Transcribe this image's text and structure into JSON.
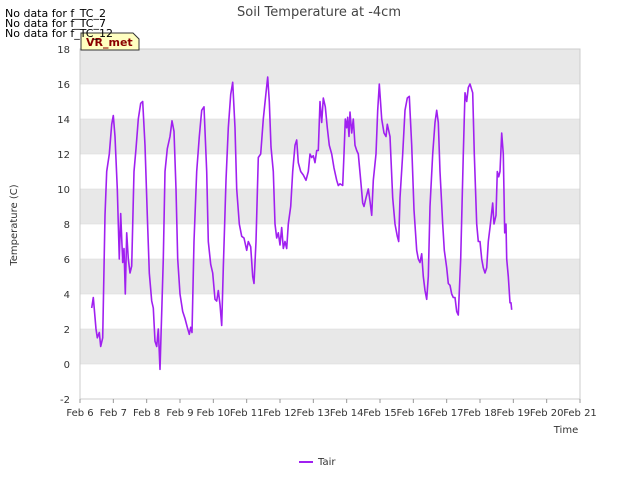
{
  "chart_data": {
    "type": "line",
    "title": "Soil Temperature at -4cm",
    "xlabel": "Time",
    "ylabel": "Temperature (C)",
    "ylim": [
      -2,
      18
    ],
    "yticks": [
      -2,
      0,
      2,
      4,
      6,
      8,
      10,
      12,
      14,
      16,
      18
    ],
    "xlim": [
      6,
      21
    ],
    "xticks": [
      {
        "v": 6,
        "label": "Feb 6"
      },
      {
        "v": 7,
        "label": "Feb 7"
      },
      {
        "v": 8,
        "label": "Feb 8"
      },
      {
        "v": 9,
        "label": "Feb 9"
      },
      {
        "v": 10,
        "label": "Feb 10"
      },
      {
        "v": 11,
        "label": "Feb 11"
      },
      {
        "v": 12,
        "label": "Feb 12"
      },
      {
        "v": 13,
        "label": "Feb 13"
      },
      {
        "v": 14,
        "label": "Feb 14"
      },
      {
        "v": 15,
        "label": "Feb 15"
      },
      {
        "v": 16,
        "label": "Feb 16"
      },
      {
        "v": 17,
        "label": "Feb 17"
      },
      {
        "v": 18,
        "label": "Feb 18"
      },
      {
        "v": 19,
        "label": "Feb 19"
      },
      {
        "v": 20,
        "label": "Feb 20"
      },
      {
        "v": 21,
        "label": "Feb 21"
      }
    ],
    "series": [
      {
        "name": "Tair",
        "color": "#a020f0",
        "points": [
          [
            6.35,
            3.2
          ],
          [
            6.4,
            3.8
          ],
          [
            6.48,
            2.0
          ],
          [
            6.52,
            1.5
          ],
          [
            6.58,
            1.8
          ],
          [
            6.62,
            1.0
          ],
          [
            6.68,
            1.5
          ],
          [
            6.75,
            8.5
          ],
          [
            6.8,
            11.0
          ],
          [
            6.88,
            12.0
          ],
          [
            6.95,
            13.7
          ],
          [
            7.0,
            14.2
          ],
          [
            7.05,
            13.0
          ],
          [
            7.12,
            10.0
          ],
          [
            7.18,
            6.0
          ],
          [
            7.22,
            8.6
          ],
          [
            7.28,
            5.8
          ],
          [
            7.32,
            6.6
          ],
          [
            7.36,
            4.0
          ],
          [
            7.4,
            7.5
          ],
          [
            7.45,
            6.0
          ],
          [
            7.5,
            5.2
          ],
          [
            7.55,
            5.6
          ],
          [
            7.62,
            11.0
          ],
          [
            7.68,
            12.3
          ],
          [
            7.75,
            14.0
          ],
          [
            7.82,
            14.9
          ],
          [
            7.88,
            15.0
          ],
          [
            7.95,
            12.5
          ],
          [
            8.02,
            8.5
          ],
          [
            8.08,
            5.2
          ],
          [
            8.15,
            3.6
          ],
          [
            8.2,
            3.2
          ],
          [
            8.25,
            1.3
          ],
          [
            8.3,
            1.0
          ],
          [
            8.35,
            2.0
          ],
          [
            8.4,
            -0.3
          ],
          [
            8.46,
            3.5
          ],
          [
            8.5,
            6.0
          ],
          [
            8.55,
            11.0
          ],
          [
            8.62,
            12.3
          ],
          [
            8.7,
            13.0
          ],
          [
            8.76,
            13.9
          ],
          [
            8.82,
            13.3
          ],
          [
            8.88,
            10.0
          ],
          [
            8.93,
            6.0
          ],
          [
            9.0,
            4.0
          ],
          [
            9.08,
            3.0
          ],
          [
            9.15,
            2.6
          ],
          [
            9.22,
            2.1
          ],
          [
            9.28,
            1.7
          ],
          [
            9.32,
            2.1
          ],
          [
            9.36,
            1.8
          ],
          [
            9.42,
            7.0
          ],
          [
            9.5,
            11.0
          ],
          [
            9.58,
            13.0
          ],
          [
            9.65,
            14.5
          ],
          [
            9.72,
            14.7
          ],
          [
            9.8,
            11.0
          ],
          [
            9.85,
            7.0
          ],
          [
            9.92,
            5.7
          ],
          [
            9.98,
            5.2
          ],
          [
            10.05,
            3.7
          ],
          [
            10.1,
            3.6
          ],
          [
            10.15,
            4.2
          ],
          [
            10.2,
            3.4
          ],
          [
            10.25,
            2.2
          ],
          [
            10.3,
            5.5
          ],
          [
            10.38,
            10.5
          ],
          [
            10.45,
            13.5
          ],
          [
            10.52,
            15.4
          ],
          [
            10.58,
            16.1
          ],
          [
            10.65,
            13.5
          ],
          [
            10.7,
            10.0
          ],
          [
            10.78,
            8.0
          ],
          [
            10.85,
            7.3
          ],
          [
            10.92,
            7.2
          ],
          [
            11.0,
            6.5
          ],
          [
            11.05,
            7.0
          ],
          [
            11.12,
            6.7
          ],
          [
            11.18,
            5.0
          ],
          [
            11.22,
            4.6
          ],
          [
            11.28,
            7.0
          ],
          [
            11.35,
            11.8
          ],
          [
            11.42,
            12.0
          ],
          [
            11.5,
            14.0
          ],
          [
            11.58,
            15.5
          ],
          [
            11.63,
            16.4
          ],
          [
            11.68,
            15.0
          ],
          [
            11.73,
            12.4
          ],
          [
            11.8,
            11.0
          ],
          [
            11.85,
            8.0
          ],
          [
            11.9,
            7.2
          ],
          [
            11.95,
            7.5
          ],
          [
            12.0,
            6.8
          ],
          [
            12.05,
            7.8
          ],
          [
            12.1,
            6.6
          ],
          [
            12.15,
            7.0
          ],
          [
            12.2,
            6.6
          ],
          [
            12.25,
            8.0
          ],
          [
            12.32,
            9.0
          ],
          [
            12.38,
            11.0
          ],
          [
            12.45,
            12.5
          ],
          [
            12.5,
            12.8
          ],
          [
            12.55,
            11.5
          ],
          [
            12.62,
            11.0
          ],
          [
            12.7,
            10.8
          ],
          [
            12.78,
            10.5
          ],
          [
            12.85,
            11.0
          ],
          [
            12.9,
            12.0
          ],
          [
            12.95,
            11.8
          ],
          [
            13.0,
            11.9
          ],
          [
            13.05,
            11.5
          ],
          [
            13.1,
            12.2
          ],
          [
            13.15,
            12.2
          ],
          [
            13.2,
            15.0
          ],
          [
            13.25,
            13.8
          ],
          [
            13.3,
            15.2
          ],
          [
            13.36,
            14.7
          ],
          [
            13.42,
            13.5
          ],
          [
            13.48,
            12.5
          ],
          [
            13.55,
            12.0
          ],
          [
            13.62,
            11.2
          ],
          [
            13.7,
            10.5
          ],
          [
            13.75,
            10.2
          ],
          [
            13.8,
            10.3
          ],
          [
            13.88,
            10.2
          ],
          [
            13.92,
            12.0
          ],
          [
            13.96,
            14.0
          ],
          [
            14.0,
            13.5
          ],
          [
            14.03,
            14.1
          ],
          [
            14.07,
            13.0
          ],
          [
            14.1,
            14.4
          ],
          [
            14.15,
            13.2
          ],
          [
            14.2,
            14.0
          ],
          [
            14.25,
            12.5
          ],
          [
            14.3,
            12.2
          ],
          [
            14.35,
            12.0
          ],
          [
            14.42,
            10.5
          ],
          [
            14.48,
            9.2
          ],
          [
            14.52,
            9.0
          ],
          [
            14.58,
            9.5
          ],
          [
            14.65,
            10.0
          ],
          [
            14.7,
            9.3
          ],
          [
            14.75,
            8.5
          ],
          [
            14.8,
            10.5
          ],
          [
            14.88,
            12.0
          ],
          [
            14.93,
            14.5
          ],
          [
            14.98,
            16.0
          ],
          [
            15.05,
            14.0
          ],
          [
            15.12,
            13.2
          ],
          [
            15.18,
            13.0
          ],
          [
            15.22,
            13.7
          ],
          [
            15.3,
            13.0
          ],
          [
            15.38,
            9.5
          ],
          [
            15.45,
            8.0
          ],
          [
            15.52,
            7.3
          ],
          [
            15.56,
            7.0
          ],
          [
            15.6,
            9.5
          ],
          [
            15.68,
            12.0
          ],
          [
            15.75,
            14.5
          ],
          [
            15.82,
            15.2
          ],
          [
            15.88,
            15.3
          ],
          [
            15.95,
            12.5
          ],
          [
            16.02,
            8.8
          ],
          [
            16.1,
            6.5
          ],
          [
            16.15,
            6.0
          ],
          [
            16.2,
            5.8
          ],
          [
            16.25,
            6.3
          ],
          [
            16.3,
            5.0
          ],
          [
            16.35,
            4.2
          ],
          [
            16.4,
            3.7
          ],
          [
            16.45,
            5.0
          ],
          [
            16.5,
            9.0
          ],
          [
            16.58,
            12.0
          ],
          [
            16.65,
            13.8
          ],
          [
            16.7,
            14.5
          ],
          [
            16.75,
            13.8
          ],
          [
            16.8,
            11.0
          ],
          [
            16.88,
            8.0
          ],
          [
            16.93,
            6.5
          ],
          [
            17.0,
            5.5
          ],
          [
            17.05,
            4.6
          ],
          [
            17.1,
            4.5
          ],
          [
            17.15,
            4.0
          ],
          [
            17.2,
            3.8
          ],
          [
            17.25,
            3.8
          ],
          [
            17.3,
            3.0
          ],
          [
            17.35,
            2.8
          ],
          [
            17.42,
            6.0
          ],
          [
            17.5,
            12.0
          ],
          [
            17.55,
            15.5
          ],
          [
            17.6,
            15.0
          ],
          [
            17.65,
            15.8
          ],
          [
            17.7,
            16.0
          ],
          [
            17.78,
            15.5
          ],
          [
            17.83,
            12.0
          ],
          [
            17.9,
            8.0
          ],
          [
            17.95,
            7.0
          ],
          [
            18.0,
            7.0
          ],
          [
            18.05,
            6.0
          ],
          [
            18.1,
            5.5
          ],
          [
            18.15,
            5.2
          ],
          [
            18.2,
            5.5
          ],
          [
            18.25,
            7.0
          ],
          [
            18.3,
            7.8
          ],
          [
            18.38,
            9.2
          ],
          [
            18.42,
            8.0
          ],
          [
            18.48,
            8.5
          ],
          [
            18.52,
            11.0
          ],
          [
            18.56,
            10.7
          ],
          [
            18.6,
            11.0
          ],
          [
            18.65,
            13.2
          ],
          [
            18.7,
            12.0
          ],
          [
            18.74,
            7.5
          ],
          [
            18.78,
            8.0
          ],
          [
            18.8,
            6.0
          ],
          [
            18.85,
            5.0
          ],
          [
            18.9,
            3.5
          ],
          [
            18.93,
            3.5
          ],
          [
            18.95,
            3.1
          ]
        ]
      }
    ],
    "legend": {
      "position": "bottom-center",
      "label": "Tair"
    }
  },
  "no_data_notes": [
    "No data for f_TC_2",
    "No data for f_TC_7",
    "No data for f_TC_12"
  ],
  "site_label": "VR_met",
  "colors": {
    "line": "#a020f0",
    "band": "#e8e8e8",
    "grid": "#ffffff",
    "badge_bg": "#ffffc0",
    "badge_text": "#8b0000"
  }
}
